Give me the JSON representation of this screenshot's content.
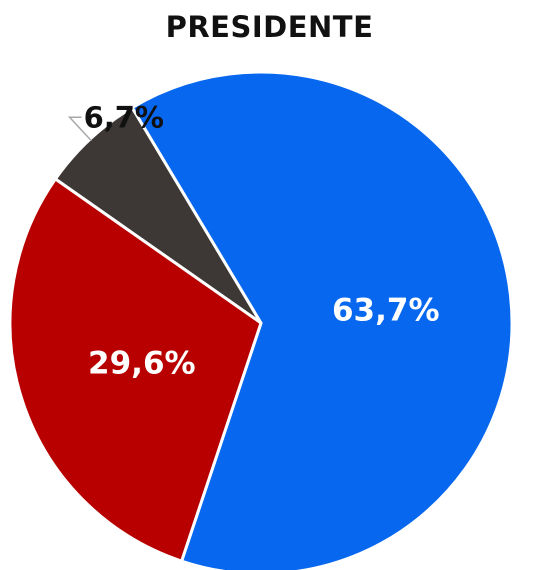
{
  "chart_data": {
    "type": "pie",
    "title": "PRESIDENTE",
    "slices": [
      {
        "label": "6,7%",
        "value": 6.7,
        "color": "#3d3835",
        "label_position": "outside"
      },
      {
        "label": "63,7%",
        "value": 63.7,
        "color": "#0767ef",
        "label_position": "inside"
      },
      {
        "label": "29,6%",
        "value": 29.6,
        "color": "#b80000",
        "label_position": "inside"
      }
    ],
    "slice_border_color": "#ffffff",
    "leader_line_color": "#a8a8a8"
  }
}
